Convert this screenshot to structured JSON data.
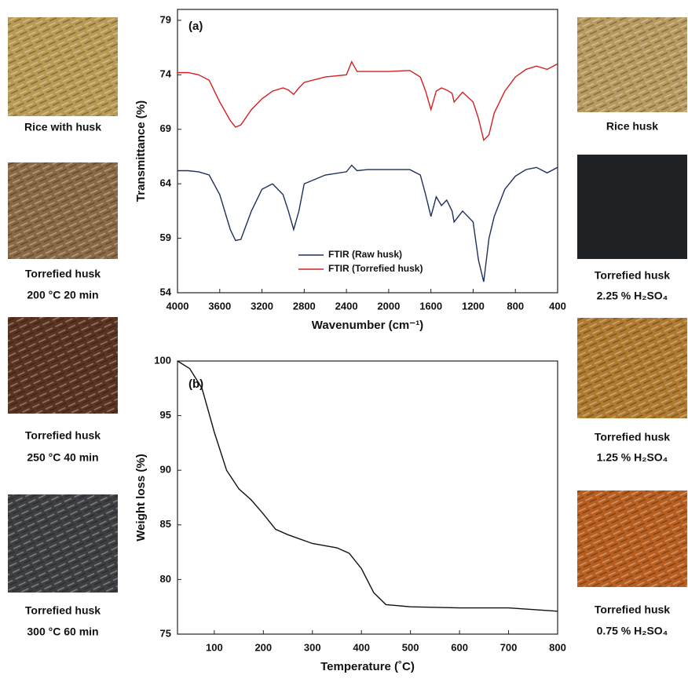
{
  "chart_data": [
    {
      "type": "line",
      "annotation": "(a)",
      "y_label": "Transmittance (%)",
      "x_label": "Wavenumber (cm⁻¹)",
      "x": [
        4000,
        3900,
        3800,
        3700,
        3600,
        3500,
        3450,
        3400,
        3300,
        3200,
        3100,
        3000,
        2950,
        2900,
        2850,
        2800,
        2600,
        2400,
        2350,
        2300,
        2200,
        2000,
        1800,
        1700,
        1650,
        1600,
        1550,
        1500,
        1450,
        1400,
        1380,
        1300,
        1200,
        1150,
        1100,
        1050,
        1000,
        900,
        800,
        700,
        600,
        500,
        400
      ],
      "series": [
        {
          "name": "FTIR (Raw husk)",
          "color": "#1f2f5c",
          "values": [
            65.2,
            65.2,
            65.1,
            64.8,
            63,
            59.8,
            58.8,
            58.9,
            61.5,
            63.5,
            64,
            63,
            61.5,
            59.8,
            61.5,
            64,
            64.8,
            65.1,
            65.7,
            65.2,
            65.3,
            65.3,
            65.3,
            64.8,
            63,
            61,
            62.8,
            62,
            62.5,
            61.5,
            60.5,
            61.5,
            60.5,
            57,
            55,
            59,
            61,
            63.5,
            64.7,
            65.3,
            65.5,
            65,
            65.5
          ]
        },
        {
          "name": "FTIR (Torrefied husk)",
          "color": "#d42020",
          "values": [
            74.2,
            74.2,
            74,
            73.5,
            71.5,
            69.8,
            69.2,
            69.4,
            70.8,
            71.8,
            72.5,
            72.8,
            72.6,
            72.2,
            72.8,
            73.3,
            73.8,
            74,
            75.2,
            74.3,
            74.3,
            74.3,
            74.4,
            73.8,
            72.5,
            70.8,
            72.5,
            72.8,
            72.6,
            72.3,
            71.5,
            72.4,
            71.5,
            70,
            68,
            68.5,
            70.5,
            72.5,
            73.8,
            74.5,
            74.8,
            74.5,
            75
          ]
        }
      ],
      "xlim": [
        4000,
        400
      ],
      "xticks": [
        4000,
        3600,
        3200,
        2800,
        2400,
        2000,
        1600,
        1200,
        800,
        400
      ],
      "ylim": [
        54,
        80
      ],
      "yticks": [
        54,
        59,
        64,
        69,
        74,
        79
      ]
    },
    {
      "type": "line",
      "annotation": "(b)",
      "y_label": "Weight loss (%)",
      "x_label": "Temperature (˚C)",
      "x": [
        25,
        50,
        75,
        100,
        125,
        150,
        175,
        200,
        225,
        250,
        300,
        350,
        375,
        400,
        425,
        450,
        500,
        600,
        700,
        800
      ],
      "series": [
        {
          "color": "#111111",
          "values": [
            100,
            99.3,
            97.5,
            93.5,
            90,
            88.3,
            87.3,
            86,
            84.6,
            84.1,
            83.3,
            82.9,
            82.4,
            81,
            78.8,
            77.7,
            77.5,
            77.4,
            77.4,
            77.1
          ]
        }
      ],
      "xlim": [
        25,
        800
      ],
      "xticks": [
        100,
        200,
        300,
        400,
        500,
        600,
        700,
        800
      ],
      "ylim": [
        75,
        100
      ],
      "yticks": [
        75,
        80,
        85,
        90,
        95,
        100
      ]
    }
  ],
  "images": {
    "left": [
      [
        "Rice with husk"
      ],
      [
        "Torrefied husk",
        "200 °C 20 min"
      ],
      [
        "Torrefied husk",
        "250 °C 40 min"
      ],
      [
        "Torrefied husk",
        "300 °C 60 min"
      ]
    ],
    "right": [
      [
        "Rice husk"
      ],
      [
        "Torrefied husk",
        "2.25 % H₂SO₄"
      ],
      [
        "Torrefied husk",
        "1.25 % H₂SO₄"
      ],
      [
        "Torrefied husk",
        "0.75 % H₂SO₄"
      ]
    ]
  }
}
